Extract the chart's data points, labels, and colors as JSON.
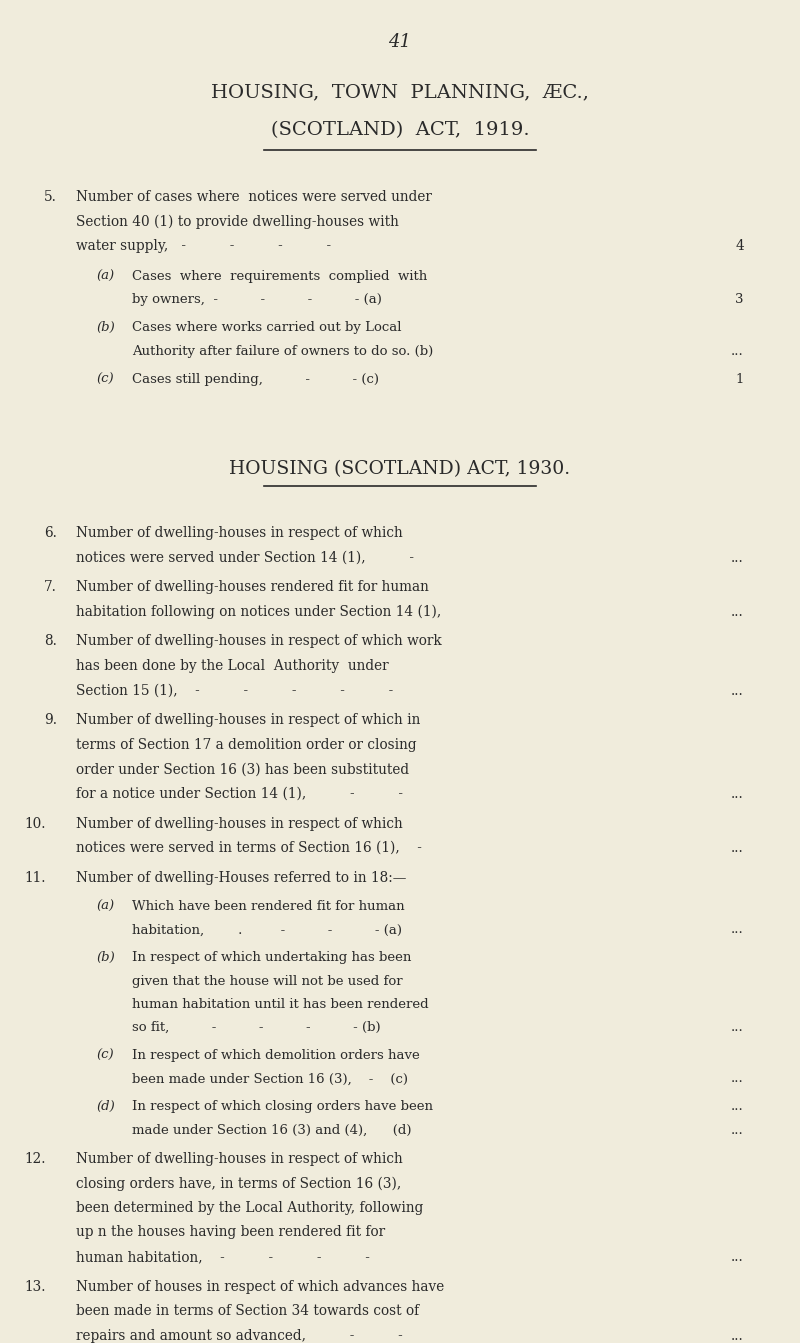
{
  "background_color": "#f0ecdc",
  "text_color": "#2a2a2a",
  "page_number": "41",
  "title1_line1": "HOUSING,  TOWN  PLANNING,  ÆC.,",
  "title1_line2": "(SCOTLAND)  ACT,  1919.",
  "title2": "HOUSING (SCOTLAND) ACT, 1930."
}
